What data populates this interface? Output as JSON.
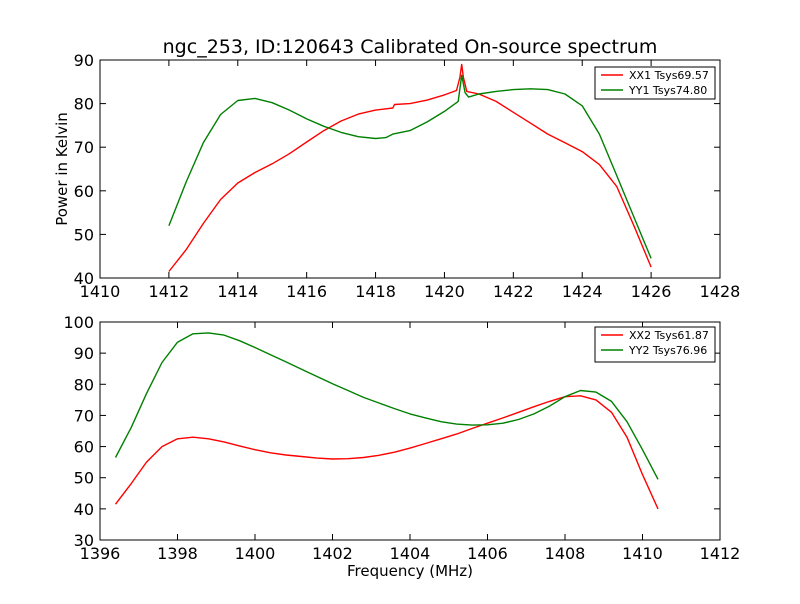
{
  "chart_data": [
    {
      "type": "line",
      "title": "ngc_253, ID:120643 Calibrated On-source spectrum",
      "xlabel": "",
      "ylabel": "Power in Kelvin",
      "xlim": [
        1410,
        1428
      ],
      "ylim": [
        40,
        90
      ],
      "xticks": [
        1410,
        1412,
        1414,
        1416,
        1418,
        1420,
        1422,
        1424,
        1426,
        1428
      ],
      "yticks": [
        40,
        50,
        60,
        70,
        80,
        90
      ],
      "grid": false,
      "legend_position": "top-right",
      "series": [
        {
          "name": "XX1 Tsys69.57",
          "color": "#ff0000",
          "points": [
            [
              1412.0,
              41.5
            ],
            [
              1412.5,
              46.5
            ],
            [
              1413.0,
              52.5
            ],
            [
              1413.5,
              58.0
            ],
            [
              1414.0,
              61.8
            ],
            [
              1414.5,
              64.2
            ],
            [
              1415.0,
              66.2
            ],
            [
              1415.5,
              68.5
            ],
            [
              1416.0,
              71.2
            ],
            [
              1416.5,
              73.8
            ],
            [
              1417.0,
              76.0
            ],
            [
              1417.5,
              77.6
            ],
            [
              1418.0,
              78.5
            ],
            [
              1418.5,
              79.0
            ],
            [
              1418.55,
              79.8
            ],
            [
              1419.0,
              80.0
            ],
            [
              1419.5,
              80.8
            ],
            [
              1420.0,
              82.0
            ],
            [
              1420.35,
              83.0
            ],
            [
              1420.45,
              86.0
            ],
            [
              1420.5,
              89.0
            ],
            [
              1420.55,
              86.0
            ],
            [
              1420.65,
              82.8
            ],
            [
              1421.0,
              82.2
            ],
            [
              1421.5,
              80.5
            ],
            [
              1422.0,
              78.0
            ],
            [
              1422.5,
              75.5
            ],
            [
              1423.0,
              73.0
            ],
            [
              1423.5,
              71.0
            ],
            [
              1424.0,
              69.0
            ],
            [
              1424.5,
              66.0
            ],
            [
              1425.0,
              61.0
            ],
            [
              1425.5,
              52.0
            ],
            [
              1426.0,
              42.5
            ]
          ]
        },
        {
          "name": "YY1 Tsys74.80",
          "color": "#008000",
          "points": [
            [
              1412.0,
              52.0
            ],
            [
              1412.5,
              62.0
            ],
            [
              1413.0,
              71.0
            ],
            [
              1413.5,
              77.5
            ],
            [
              1414.0,
              80.7
            ],
            [
              1414.5,
              81.2
            ],
            [
              1415.0,
              80.2
            ],
            [
              1415.5,
              78.5
            ],
            [
              1416.0,
              76.5
            ],
            [
              1416.5,
              74.8
            ],
            [
              1417.0,
              73.4
            ],
            [
              1417.5,
              72.4
            ],
            [
              1418.0,
              72.0
            ],
            [
              1418.3,
              72.2
            ],
            [
              1418.5,
              73.0
            ],
            [
              1419.0,
              73.8
            ],
            [
              1419.5,
              75.8
            ],
            [
              1420.0,
              78.2
            ],
            [
              1420.4,
              80.5
            ],
            [
              1420.5,
              86.5
            ],
            [
              1420.6,
              82.5
            ],
            [
              1420.7,
              81.5
            ],
            [
              1421.0,
              82.2
            ],
            [
              1421.5,
              82.8
            ],
            [
              1422.0,
              83.2
            ],
            [
              1422.5,
              83.4
            ],
            [
              1423.0,
              83.2
            ],
            [
              1423.5,
              82.2
            ],
            [
              1424.0,
              79.5
            ],
            [
              1424.5,
              73.0
            ],
            [
              1425.0,
              63.5
            ],
            [
              1425.5,
              54.0
            ],
            [
              1426.0,
              44.5
            ]
          ]
        }
      ]
    },
    {
      "type": "line",
      "title": "",
      "xlabel": "Frequency (MHz)",
      "ylabel": "",
      "xlim": [
        1396,
        1412
      ],
      "ylim": [
        30,
        100
      ],
      "xticks": [
        1396,
        1398,
        1400,
        1402,
        1404,
        1406,
        1408,
        1410,
        1412
      ],
      "yticks": [
        30,
        40,
        50,
        60,
        70,
        80,
        90,
        100
      ],
      "grid": false,
      "legend_position": "top-right",
      "series": [
        {
          "name": "XX2 Tsys61.87",
          "color": "#ff0000",
          "points": [
            [
              1396.4,
              41.5
            ],
            [
              1396.8,
              48.0
            ],
            [
              1397.2,
              55.0
            ],
            [
              1397.6,
              60.0
            ],
            [
              1398.0,
              62.5
            ],
            [
              1398.4,
              63.0
            ],
            [
              1398.8,
              62.5
            ],
            [
              1399.2,
              61.5
            ],
            [
              1399.6,
              60.2
            ],
            [
              1400.0,
              59.0
            ],
            [
              1400.4,
              58.0
            ],
            [
              1400.8,
              57.3
            ],
            [
              1401.2,
              56.8
            ],
            [
              1401.6,
              56.3
            ],
            [
              1402.0,
              56.0
            ],
            [
              1402.4,
              56.1
            ],
            [
              1402.8,
              56.5
            ],
            [
              1403.2,
              57.2
            ],
            [
              1403.6,
              58.2
            ],
            [
              1404.0,
              59.5
            ],
            [
              1404.4,
              61.0
            ],
            [
              1404.8,
              62.5
            ],
            [
              1405.2,
              64.0
            ],
            [
              1405.6,
              65.8
            ],
            [
              1406.0,
              67.5
            ],
            [
              1406.4,
              69.2
            ],
            [
              1406.8,
              71.0
            ],
            [
              1407.2,
              72.8
            ],
            [
              1407.6,
              74.5
            ],
            [
              1408.0,
              76.0
            ],
            [
              1408.4,
              76.3
            ],
            [
              1408.8,
              75.0
            ],
            [
              1409.2,
              71.0
            ],
            [
              1409.6,
              63.0
            ],
            [
              1410.0,
              51.0
            ],
            [
              1410.4,
              40.0
            ]
          ]
        },
        {
          "name": "YY2 Tsys76.96",
          "color": "#008000",
          "points": [
            [
              1396.4,
              56.5
            ],
            [
              1396.8,
              66.0
            ],
            [
              1397.2,
              77.0
            ],
            [
              1397.6,
              87.0
            ],
            [
              1398.0,
              93.5
            ],
            [
              1398.4,
              96.2
            ],
            [
              1398.8,
              96.5
            ],
            [
              1399.2,
              95.8
            ],
            [
              1399.6,
              94.0
            ],
            [
              1400.0,
              91.8
            ],
            [
              1400.4,
              89.5
            ],
            [
              1400.8,
              87.2
            ],
            [
              1401.2,
              84.8
            ],
            [
              1401.6,
              82.5
            ],
            [
              1402.0,
              80.2
            ],
            [
              1402.4,
              78.0
            ],
            [
              1402.8,
              75.8
            ],
            [
              1403.2,
              74.0
            ],
            [
              1403.6,
              72.2
            ],
            [
              1404.0,
              70.5
            ],
            [
              1404.4,
              69.2
            ],
            [
              1404.8,
              68.0
            ],
            [
              1405.2,
              67.2
            ],
            [
              1405.6,
              66.9
            ],
            [
              1406.0,
              67.0
            ],
            [
              1406.4,
              67.5
            ],
            [
              1406.8,
              68.7
            ],
            [
              1407.2,
              70.5
            ],
            [
              1407.6,
              73.0
            ],
            [
              1408.0,
              76.0
            ],
            [
              1408.4,
              78.0
            ],
            [
              1408.8,
              77.5
            ],
            [
              1409.2,
              74.5
            ],
            [
              1409.6,
              68.0
            ],
            [
              1410.0,
              59.0
            ],
            [
              1410.4,
              49.5
            ]
          ]
        }
      ]
    }
  ]
}
